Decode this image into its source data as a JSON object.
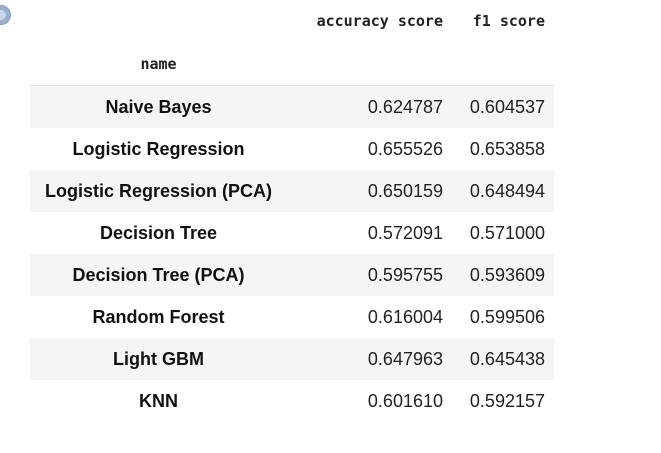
{
  "table": {
    "columns": {
      "accuracy": "accuracy score",
      "f1": "f1 score"
    },
    "index_name": "name",
    "rows": [
      {
        "name": "Naive Bayes",
        "accuracy": "0.624787",
        "f1": "0.604537"
      },
      {
        "name": "Logistic Regression",
        "accuracy": "0.655526",
        "f1": "0.653858"
      },
      {
        "name": "Logistic Regression (PCA)",
        "accuracy": "0.650159",
        "f1": "0.648494"
      },
      {
        "name": "Decision Tree",
        "accuracy": "0.572091",
        "f1": "0.571000"
      },
      {
        "name": "Decision Tree (PCA)",
        "accuracy": "0.595755",
        "f1": "0.593609"
      },
      {
        "name": "Random Forest",
        "accuracy": "0.616004",
        "f1": "0.599506"
      },
      {
        "name": "Light GBM",
        "accuracy": "0.647963",
        "f1": "0.645438"
      },
      {
        "name": "KNN",
        "accuracy": "0.601610",
        "f1": "0.592157"
      }
    ]
  },
  "colors": {
    "stripe": "#f5f5f5",
    "corner_button": "#9aaed0"
  }
}
